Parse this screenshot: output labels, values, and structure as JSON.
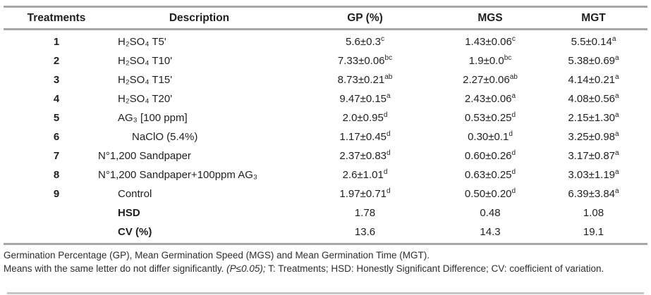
{
  "table": {
    "columns": [
      "Treatments",
      "Description",
      "GP (%)",
      "MGS",
      "MGT"
    ],
    "rows": [
      {
        "treatment": "1",
        "description": "H₂SO₄ T5'",
        "bold": false,
        "gp": {
          "v": "5.6±0.3",
          "sup": "c"
        },
        "mgs": {
          "v": "1.43±0.06",
          "sup": "c"
        },
        "mgt": {
          "v": "5.5±0.14",
          "sup": "a"
        }
      },
      {
        "treatment": "2",
        "description": "H₂SO₄ T10'",
        "bold": false,
        "gp": {
          "v": "7.33±0.06",
          "sup": "bc"
        },
        "mgs": {
          "v": "1.9±0.0",
          "sup": "bc"
        },
        "mgt": {
          "v": "5.38±0.69",
          "sup": "a"
        }
      },
      {
        "treatment": "3",
        "description": "H₂SO₄ T15'",
        "bold": false,
        "gp": {
          "v": "8.73±0.21",
          "sup": "ab"
        },
        "mgs": {
          "v": "2.27±0.06",
          "sup": "ab"
        },
        "mgt": {
          "v": "4.14±0.21",
          "sup": "a"
        }
      },
      {
        "treatment": "4",
        "description": "H₂SO₄ T20'",
        "bold": false,
        "gp": {
          "v": "9.47±0.15",
          "sup": "a"
        },
        "mgs": {
          "v": "2.43±0.06",
          "sup": "a"
        },
        "mgt": {
          "v": "4.08±0.56",
          "sup": "a"
        }
      },
      {
        "treatment": "5",
        "description": "AG₃ [100 ppm]",
        "bold": false,
        "gp": {
          "v": "2.0±0.95",
          "sup": "d"
        },
        "mgs": {
          "v": "0.53±0.25",
          "sup": "d"
        },
        "mgt": {
          "v": "2.15±1.30",
          "sup": "a"
        }
      },
      {
        "treatment": "6",
        "description": "NaClO (5.4%)",
        "bold": false,
        "gp": {
          "v": "1.17±0.45",
          "sup": "d"
        },
        "mgs": {
          "v": "0.30±0.1",
          "sup": "d"
        },
        "mgt": {
          "v": "3.25±0.98",
          "sup": "a"
        }
      },
      {
        "treatment": "7",
        "description": "N°1,200 Sandpaper",
        "bold": false,
        "gp": {
          "v": "2.37±0.83",
          "sup": "d"
        },
        "mgs": {
          "v": "0.60±0.26",
          "sup": "d"
        },
        "mgt": {
          "v": "3.17±0.87",
          "sup": "a"
        }
      },
      {
        "treatment": "8",
        "description": "N°1,200 Sandpaper+100ppm AG₃",
        "bold": false,
        "gp": {
          "v": "2.6±1.01",
          "sup": "d"
        },
        "mgs": {
          "v": "0.63±0.25",
          "sup": "d"
        },
        "mgt": {
          "v": "3.03±1.19",
          "sup": "a"
        }
      },
      {
        "treatment": "9",
        "description": "Control",
        "bold": false,
        "gp": {
          "v": "1.97±0.71",
          "sup": "d"
        },
        "mgs": {
          "v": "0.50±0.20",
          "sup": "d"
        },
        "mgt": {
          "v": "6.39±3.84",
          "sup": "a"
        }
      },
      {
        "treatment": "",
        "description": "HSD",
        "bold": true,
        "gp": {
          "v": "1.78",
          "sup": ""
        },
        "mgs": {
          "v": "0.48",
          "sup": ""
        },
        "mgt": {
          "v": "1.08",
          "sup": ""
        }
      },
      {
        "treatment": "",
        "description": "CV (%)",
        "bold": true,
        "gp": {
          "v": "13.6",
          "sup": ""
        },
        "mgs": {
          "v": "14.3",
          "sup": ""
        },
        "mgt": {
          "v": "19.1",
          "sup": ""
        }
      }
    ]
  },
  "footnotes": {
    "line1": "Germination Percentage (GP), Mean Germination Speed (MGS) and Mean Germination Time (MGT).",
    "line2_normal": "Means with the same letter do not differ significantly. ",
    "line2_italic": "(P≤0.05);",
    "line2_rest": " T: Treatments; HSD: Honestly Significant Difference; CV: coefficient of variation."
  },
  "colors": {
    "rule": "#a7a7a7",
    "rule-light": "#c6c6c6",
    "ink": "#1f1f1f",
    "ink-soft": "#2e2e2e",
    "paper": "#ffffff"
  }
}
